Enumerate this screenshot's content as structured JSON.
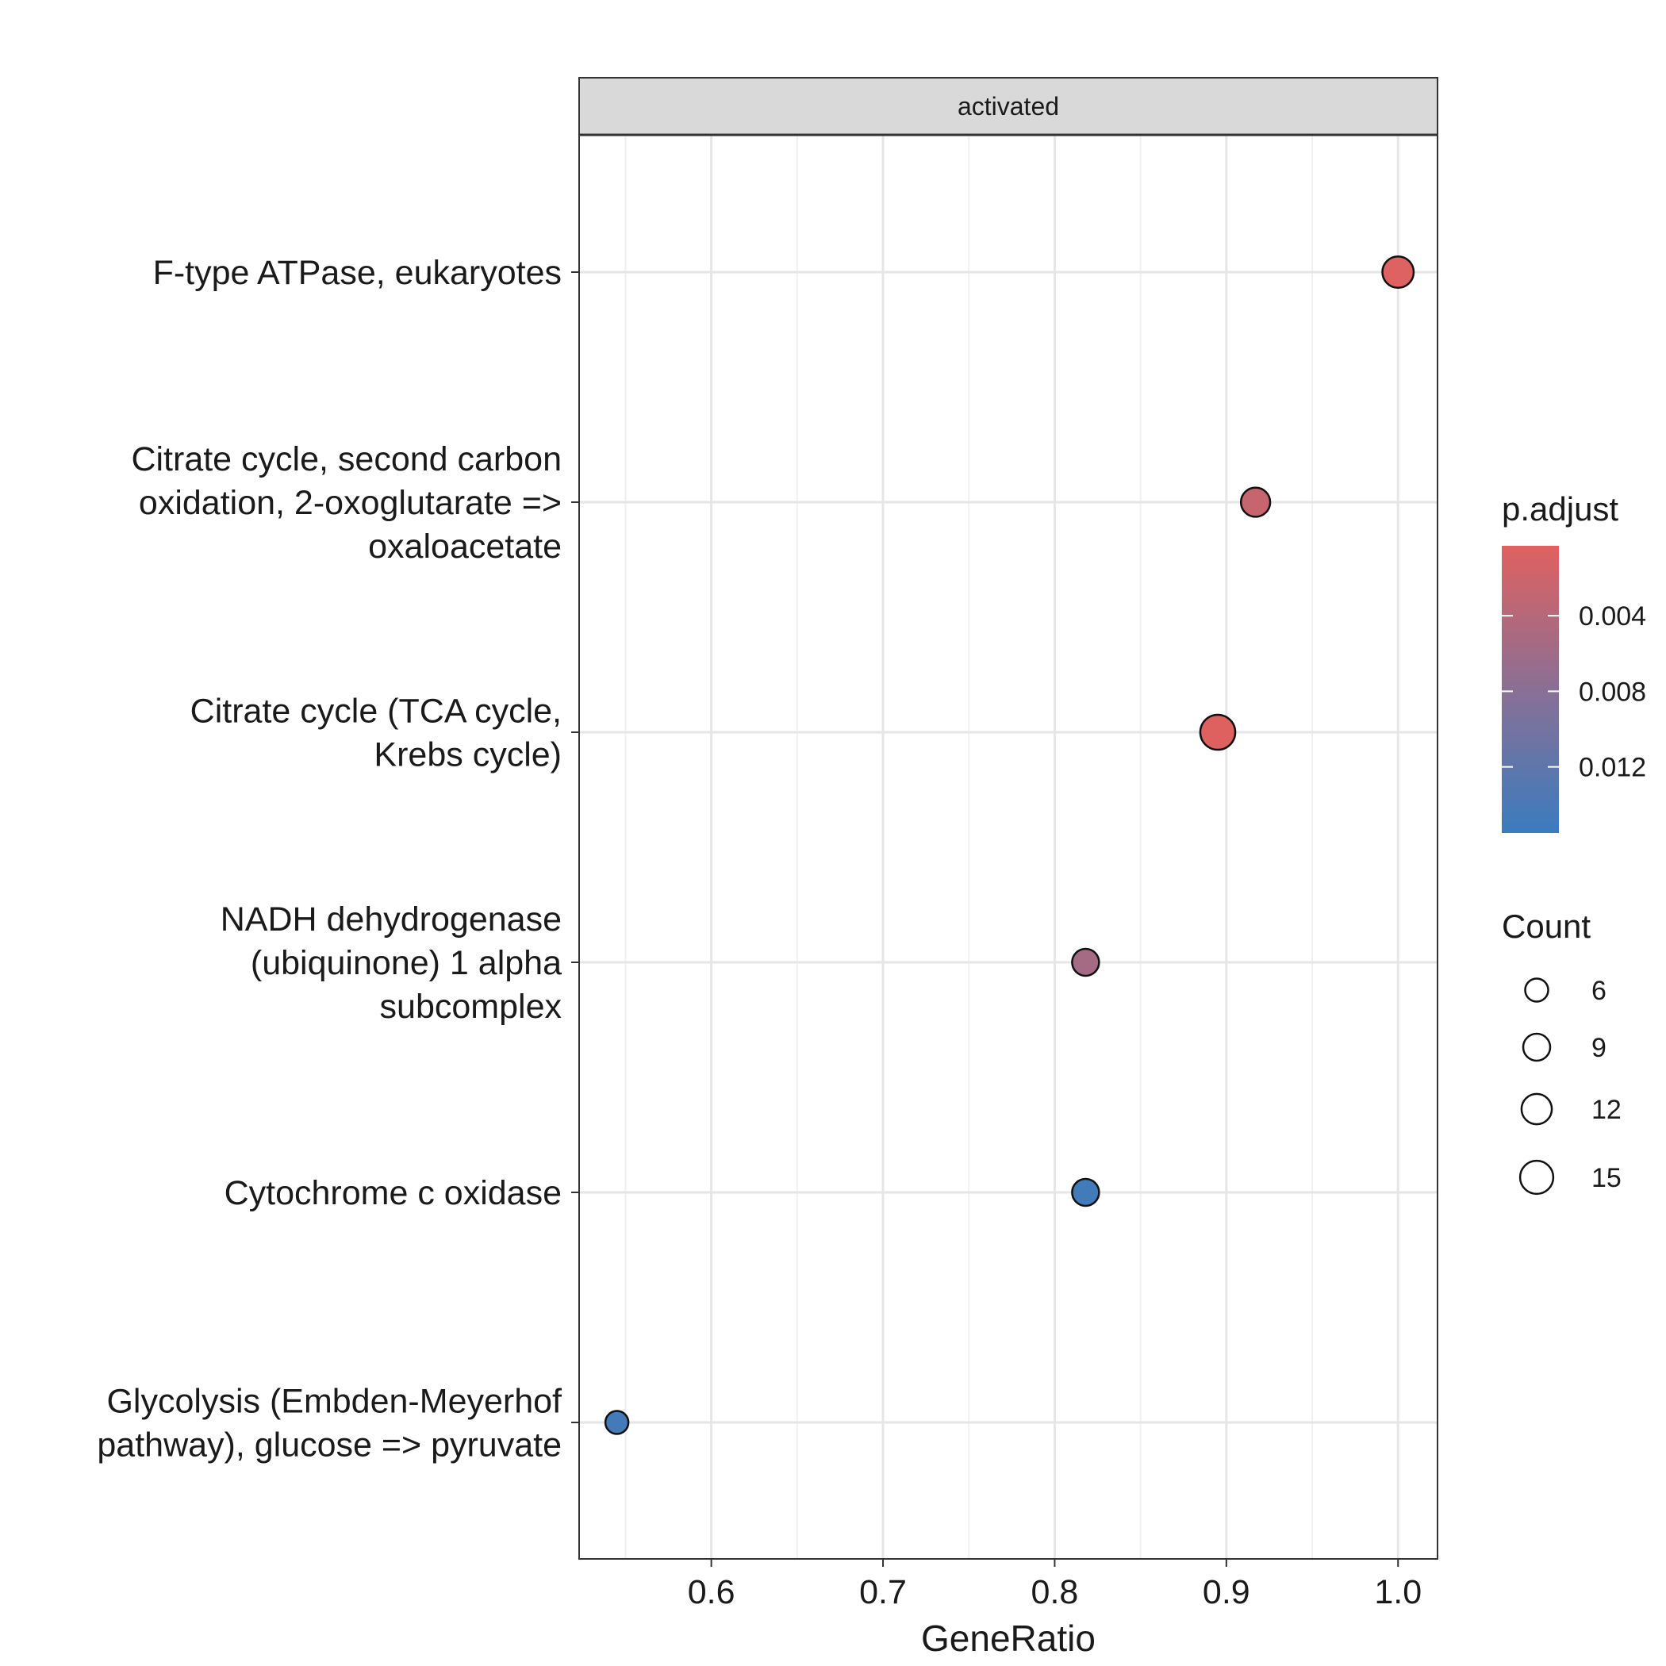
{
  "chart_data": {
    "type": "scatter",
    "facet_label": "activated",
    "xlabel": "GeneRatio",
    "ylabel": "",
    "xlim": [
      0.523,
      1.023
    ],
    "x_ticks": [
      {
        "value": 0.6,
        "label": "0.6"
      },
      {
        "value": 0.7,
        "label": "0.7"
      },
      {
        "value": 0.8,
        "label": "0.8"
      },
      {
        "value": 0.9,
        "label": "0.9"
      },
      {
        "value": 1.0,
        "label": "1.0"
      }
    ],
    "x_minor_gridlines": [
      0.55,
      0.65,
      0.75,
      0.85,
      0.95
    ],
    "grid": true,
    "categories": [
      {
        "lines": [
          "F-type ATPase, eukaryotes"
        ]
      },
      {
        "lines": [
          "Citrate cycle, second carbon",
          "oxidation, 2-oxoglutarate =>",
          "oxaloacetate"
        ]
      },
      {
        "lines": [
          "Citrate cycle (TCA cycle,",
          "Krebs cycle)"
        ]
      },
      {
        "lines": [
          "NADH dehydrogenase",
          "(ubiquinone) 1 alpha",
          "subcomplex"
        ]
      },
      {
        "lines": [
          "Cytochrome c oxidase"
        ]
      },
      {
        "lines": [
          "Glycolysis (Embden-Meyerhof",
          "pathway), glucose => pyruvate"
        ]
      }
    ],
    "points": [
      {
        "category_index": 0,
        "x": 1.0,
        "count": 13,
        "p_adjust": 0.0006
      },
      {
        "category_index": 1,
        "x": 0.917,
        "count": 11,
        "p_adjust": 0.0025
      },
      {
        "category_index": 2,
        "x": 0.895,
        "count": 17,
        "p_adjust": 0.0005
      },
      {
        "category_index": 3,
        "x": 0.818,
        "count": 9,
        "p_adjust": 0.0055
      },
      {
        "category_index": 4,
        "x": 0.818,
        "count": 9,
        "p_adjust": 0.0148
      },
      {
        "category_index": 5,
        "x": 0.545,
        "count": 6,
        "p_adjust": 0.0145
      }
    ],
    "color_legend": {
      "title": "p.adjust",
      "domain": [
        0.0003,
        0.0155
      ],
      "low_color": "#E0615F",
      "high_color": "#3A7CBE",
      "ticks": [
        {
          "value": 0.004,
          "label": "0.004"
        },
        {
          "value": 0.008,
          "label": "0.008"
        },
        {
          "value": 0.012,
          "label": "0.012"
        }
      ]
    },
    "size_legend": {
      "title": "Count",
      "entries": [
        {
          "value": 6,
          "label": "6"
        },
        {
          "value": 9,
          "label": "9"
        },
        {
          "value": 12,
          "label": "12"
        },
        {
          "value": 15,
          "label": "15"
        }
      ]
    },
    "colors": {
      "panel_border": "#333333",
      "strip_fill": "#d9d9d9",
      "grid_major": "#e6e6e6",
      "grid_minor": "#f0f0f0",
      "point_stroke": "#111111"
    }
  }
}
